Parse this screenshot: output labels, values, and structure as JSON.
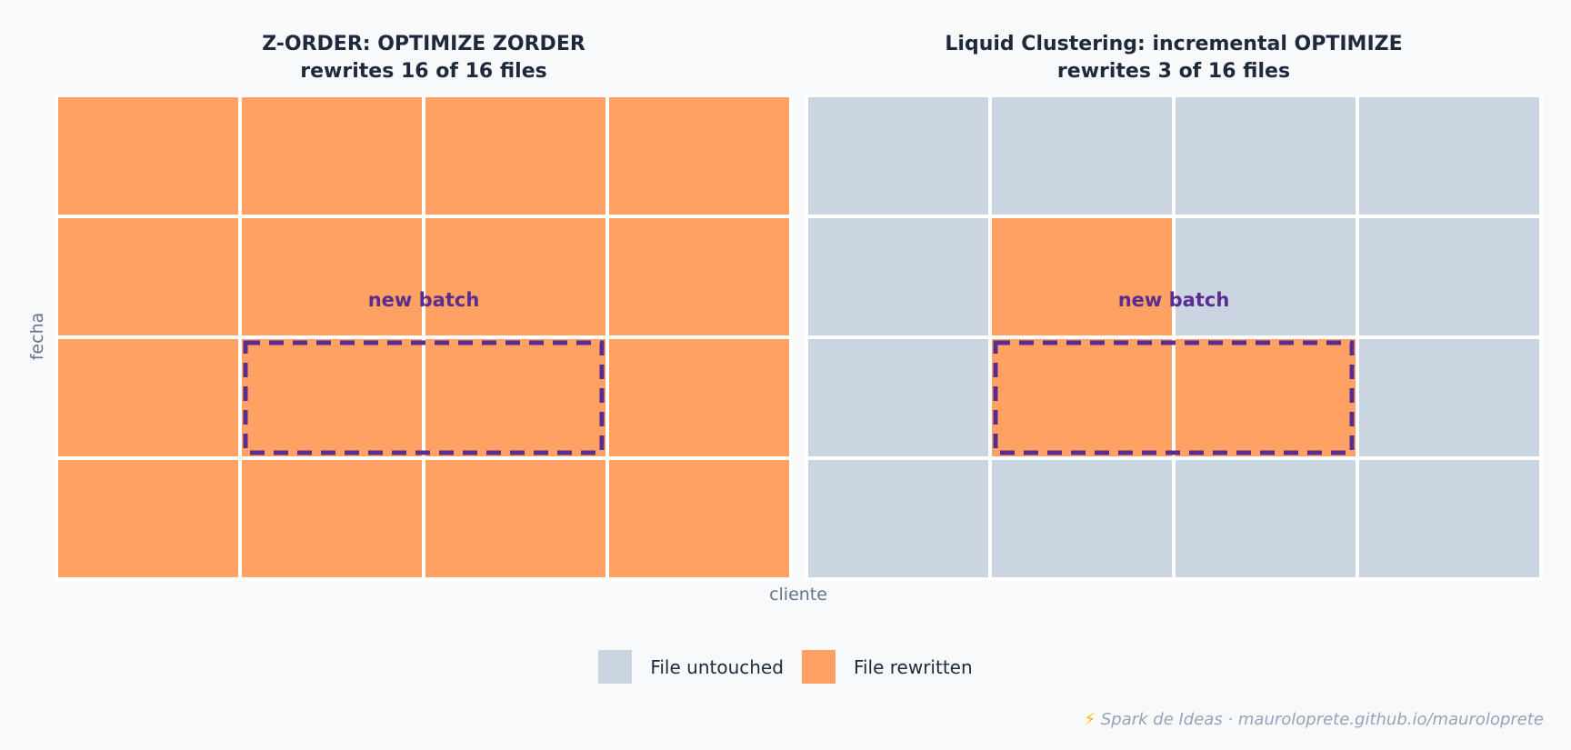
{
  "colors": {
    "untouched": "#cbd5e1",
    "rewritten": "#ffa163",
    "batch_outline": "#5b2c8f",
    "title": "#1e293b",
    "axis": "#64748b",
    "footer": "#94a3b8",
    "bolt": "#f4b400"
  },
  "panels": [
    {
      "title_line1": "Z-ORDER: OPTIMIZE ZORDER",
      "title_line2": "rewrites 16 of 16 files",
      "annotation": "new batch",
      "cells": [
        [
          "rewritten",
          "rewritten",
          "rewritten",
          "rewritten"
        ],
        [
          "rewritten",
          "rewritten",
          "rewritten",
          "rewritten"
        ],
        [
          "rewritten",
          "rewritten",
          "rewritten",
          "rewritten"
        ],
        [
          "rewritten",
          "rewritten",
          "rewritten",
          "rewritten"
        ]
      ],
      "batch": {
        "row": 2,
        "col_start": 1,
        "col_end": 2
      }
    },
    {
      "title_line1": "Liquid Clustering: incremental OPTIMIZE",
      "title_line2": "rewrites 3 of 16 files",
      "annotation": "new batch",
      "cells": [
        [
          "untouched",
          "untouched",
          "untouched",
          "untouched"
        ],
        [
          "untouched",
          "rewritten",
          "untouched",
          "untouched"
        ],
        [
          "untouched",
          "rewritten",
          "rewritten",
          "untouched"
        ],
        [
          "untouched",
          "untouched",
          "untouched",
          "untouched"
        ]
      ],
      "batch": {
        "row": 2,
        "col_start": 1,
        "col_end": 2
      }
    }
  ],
  "axes": {
    "xlabel": "cliente",
    "ylabel": "fecha"
  },
  "legend": [
    {
      "label": "File untouched",
      "state": "untouched"
    },
    {
      "label": "File rewritten",
      "state": "rewritten"
    }
  ],
  "footer": {
    "icon": "lightning-bolt-icon",
    "bolt": "⚡",
    "text": "Spark de Ideas · mauroloprete.github.io/mauroloprete"
  }
}
